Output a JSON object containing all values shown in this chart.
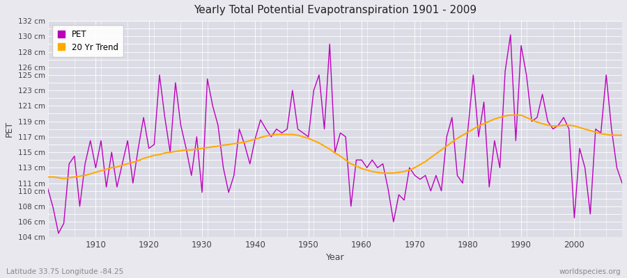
{
  "title": "Yearly Total Potential Evapotranspiration 1901 - 2009",
  "xlabel": "Year",
  "ylabel": "PET",
  "subtitle_left": "Latitude 33.75 Longitude -84.25",
  "subtitle_right": "worldspecies.org",
  "ylim": [
    104,
    132
  ],
  "pet_color": "#bb00bb",
  "trend_color": "#ffaa00",
  "background_color": "#e8e8ee",
  "plot_bg_color": "#dcdce6",
  "grid_color": "#ffffff",
  "years": [
    1901,
    1902,
    1903,
    1904,
    1905,
    1906,
    1907,
    1908,
    1909,
    1910,
    1911,
    1912,
    1913,
    1914,
    1915,
    1916,
    1917,
    1918,
    1919,
    1920,
    1921,
    1922,
    1923,
    1924,
    1925,
    1926,
    1927,
    1928,
    1929,
    1930,
    1931,
    1932,
    1933,
    1934,
    1935,
    1936,
    1937,
    1938,
    1939,
    1940,
    1941,
    1942,
    1943,
    1944,
    1945,
    1946,
    1947,
    1948,
    1949,
    1950,
    1951,
    1952,
    1953,
    1954,
    1955,
    1956,
    1957,
    1958,
    1959,
    1960,
    1961,
    1962,
    1963,
    1964,
    1965,
    1966,
    1967,
    1968,
    1969,
    1970,
    1971,
    1972,
    1973,
    1974,
    1975,
    1976,
    1977,
    1978,
    1979,
    1980,
    1981,
    1982,
    1983,
    1984,
    1985,
    1986,
    1987,
    1988,
    1989,
    1990,
    1991,
    1992,
    1993,
    1994,
    1995,
    1996,
    1997,
    1998,
    1999,
    2000,
    2001,
    2002,
    2003,
    2004,
    2005,
    2006,
    2007,
    2008,
    2009
  ],
  "pet_values": [
    110.3,
    107.8,
    104.5,
    105.8,
    113.5,
    114.5,
    108.0,
    113.5,
    116.5,
    113.0,
    116.5,
    110.5,
    115.0,
    110.5,
    113.5,
    116.5,
    111.0,
    115.5,
    119.5,
    115.5,
    116.0,
    125.0,
    119.5,
    115.0,
    124.0,
    118.5,
    115.5,
    112.0,
    117.0,
    109.8,
    124.5,
    121.0,
    118.5,
    113.0,
    109.8,
    112.0,
    118.0,
    116.0,
    113.5,
    116.8,
    119.2,
    118.0,
    117.0,
    118.0,
    117.5,
    118.0,
    123.0,
    118.0,
    117.5,
    117.0,
    123.0,
    125.0,
    118.0,
    129.0,
    115.0,
    117.5,
    117.0,
    108.0,
    114.0,
    114.0,
    113.0,
    114.0,
    113.0,
    113.5,
    110.2,
    106.0,
    109.5,
    108.8,
    113.0,
    112.0,
    111.5,
    112.0,
    110.0,
    112.0,
    110.0,
    117.0,
    119.5,
    112.0,
    111.0,
    118.0,
    125.0,
    117.0,
    121.5,
    110.5,
    116.5,
    113.0,
    125.5,
    130.2,
    116.5,
    128.8,
    125.0,
    119.0,
    119.5,
    122.5,
    119.0,
    118.0,
    118.5,
    119.5,
    118.0,
    106.5,
    115.5,
    113.0,
    107.0,
    118.0,
    117.5,
    125.0,
    118.0,
    113.0,
    111.0
  ],
  "trend_values": [
    111.8,
    111.8,
    111.7,
    111.6,
    111.7,
    111.8,
    111.9,
    112.0,
    112.2,
    112.4,
    112.6,
    112.8,
    113.0,
    113.1,
    113.3,
    113.5,
    113.7,
    113.9,
    114.2,
    114.4,
    114.6,
    114.7,
    114.9,
    115.0,
    115.1,
    115.2,
    115.3,
    115.3,
    115.4,
    115.5,
    115.6,
    115.7,
    115.8,
    115.9,
    116.0,
    116.1,
    116.2,
    116.3,
    116.5,
    116.7,
    116.9,
    117.1,
    117.2,
    117.3,
    117.3,
    117.3,
    117.3,
    117.2,
    117.0,
    116.8,
    116.5,
    116.2,
    115.8,
    115.4,
    114.9,
    114.5,
    114.0,
    113.5,
    113.2,
    112.9,
    112.7,
    112.5,
    112.4,
    112.3,
    112.3,
    112.3,
    112.4,
    112.5,
    112.7,
    113.0,
    113.4,
    113.8,
    114.3,
    114.8,
    115.3,
    115.8,
    116.3,
    116.8,
    117.2,
    117.6,
    118.0,
    118.4,
    118.7,
    119.0,
    119.3,
    119.5,
    119.7,
    119.8,
    119.8,
    119.8,
    119.5,
    119.2,
    118.9,
    118.7,
    118.5,
    118.4,
    118.4,
    118.5,
    118.5,
    118.4,
    118.2,
    118.0,
    117.8,
    117.6,
    117.4,
    117.3,
    117.2,
    117.2,
    117.2
  ],
  "legend_pet_label": "PET",
  "legend_trend_label": "20 Yr Trend",
  "ytick_labeled": [
    104,
    106,
    108,
    110,
    111,
    113,
    115,
    117,
    119,
    121,
    123,
    125,
    126,
    128,
    130,
    132
  ]
}
